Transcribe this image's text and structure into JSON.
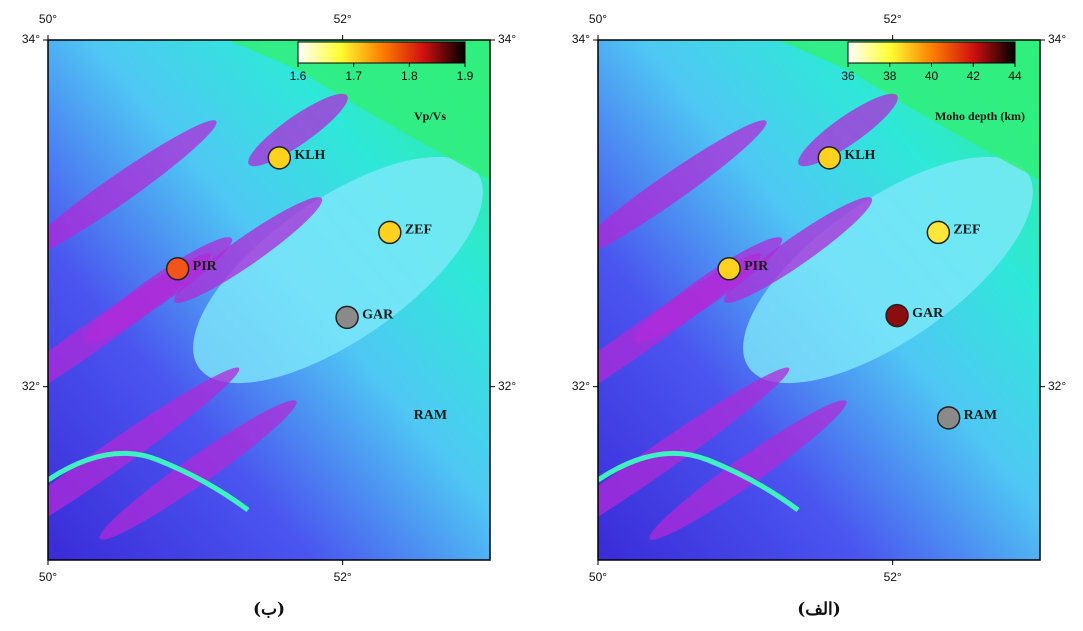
{
  "panels": [
    {
      "caption": "(ب)",
      "xlim": [
        50,
        53
      ],
      "ylim": [
        31,
        34
      ],
      "xticks": [
        {
          "value": 50,
          "label": "50°"
        },
        {
          "value": 52,
          "label": "52°"
        }
      ],
      "yticks": [
        {
          "value": 34,
          "label": "34°"
        },
        {
          "value": 32,
          "label": "32°"
        }
      ],
      "colorbar": {
        "label": "Vp/Vs",
        "lim": [
          1.6,
          1.9
        ],
        "ticks": [
          1.6,
          1.7,
          1.8,
          1.9
        ],
        "colors": [
          "#ffffff",
          "#ffff33",
          "#ff8000",
          "#d01010",
          "#000000"
        ]
      },
      "stations": [
        {
          "name": "KLH",
          "lon": 51.57,
          "lat": 33.32,
          "color": "#ffd21f"
        },
        {
          "name": "ZEF",
          "lon": 52.32,
          "lat": 32.89,
          "color": "#ffd21f"
        },
        {
          "name": "PIR",
          "lon": 50.88,
          "lat": 32.68,
          "color": "#f2541b"
        },
        {
          "name": "GAR",
          "lon": 52.03,
          "lat": 32.4,
          "color": "#8a8a8a"
        },
        {
          "name": "RAM",
          "lon": 52.38,
          "lat": 31.82,
          "color": null
        }
      ]
    },
    {
      "caption": "(الف)",
      "xlim": [
        50,
        53
      ],
      "ylim": [
        31,
        34
      ],
      "xticks": [
        {
          "value": 50,
          "label": "50°"
        },
        {
          "value": 52,
          "label": "52°"
        }
      ],
      "yticks": [
        {
          "value": 34,
          "label": "34°"
        },
        {
          "value": 32,
          "label": "32°"
        }
      ],
      "colorbar": {
        "label": "Moho depth (km)",
        "lim": [
          36,
          44
        ],
        "ticks": [
          36,
          38,
          40,
          42,
          44
        ],
        "colors": [
          "#ffffff",
          "#ffff33",
          "#ff8000",
          "#d01010",
          "#000000"
        ]
      },
      "stations": [
        {
          "name": "KLH",
          "lon": 51.57,
          "lat": 33.32,
          "color": "#ffd21f"
        },
        {
          "name": "ZEF",
          "lon": 52.31,
          "lat": 32.89,
          "color": "#ffe63a"
        },
        {
          "name": "PIR",
          "lon": 50.89,
          "lat": 32.68,
          "color": "#ffd21f"
        },
        {
          "name": "GAR",
          "lon": 52.03,
          "lat": 32.41,
          "color": "#8b0d0d"
        },
        {
          "name": "RAM",
          "lon": 52.38,
          "lat": 31.82,
          "color": "#8a8a8a"
        }
      ]
    }
  ]
}
